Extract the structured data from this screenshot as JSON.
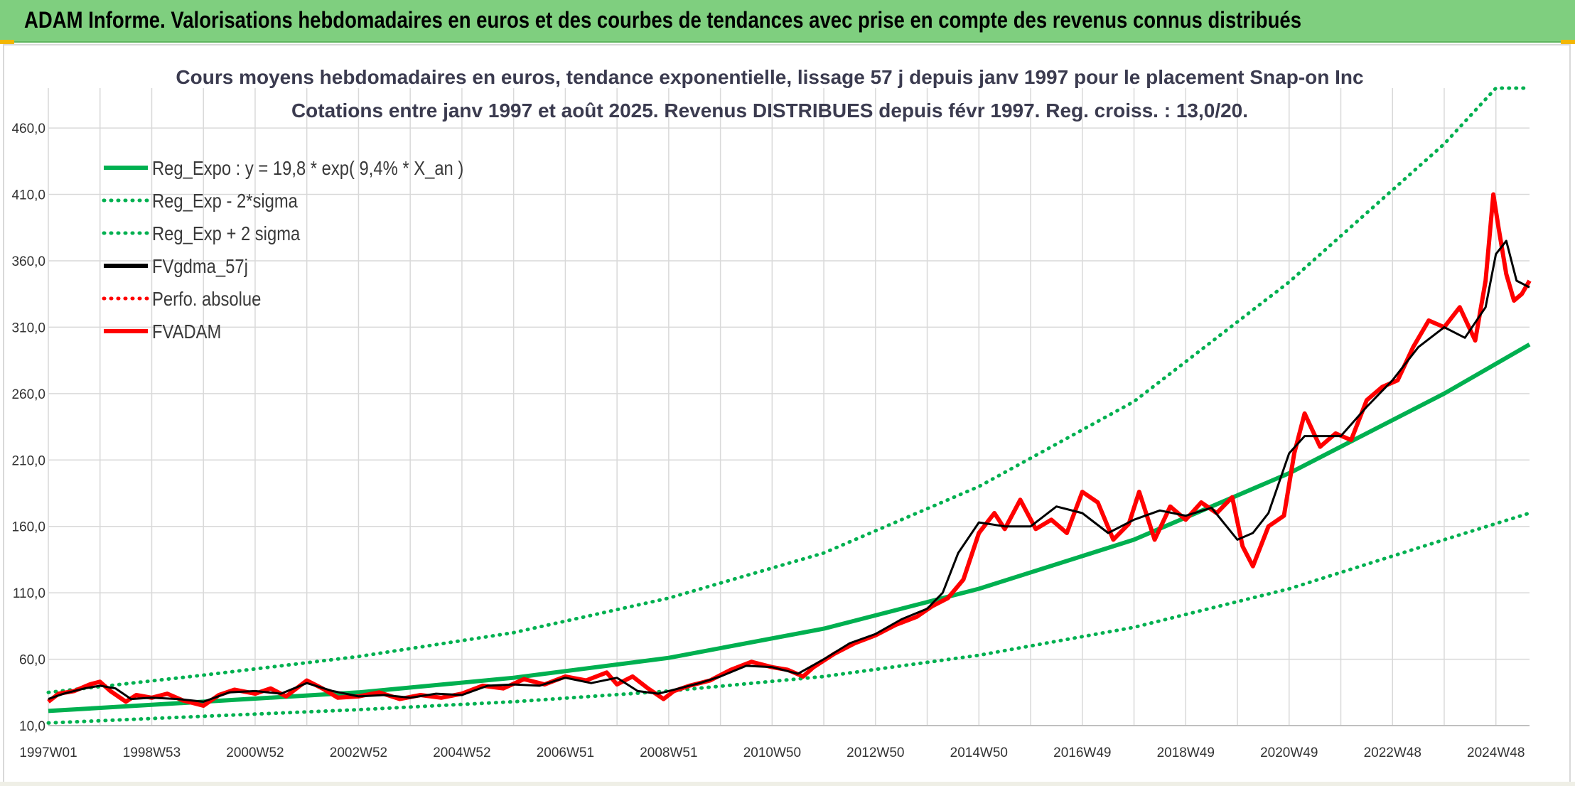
{
  "header": {
    "title": "ADAM Informe. Valorisations hebdomadaires en euros et des courbes de tendances avec prise en compte des revenus connus distribués",
    "background_color": "#7fcf7f",
    "accent_color": "#f2b705"
  },
  "chart_data": {
    "type": "line",
    "title": "Cours moyens hebdomadaires en euros, tendance exponentielle, lissage 57 j depuis janv 1997 pour le placement Snap-on Inc",
    "subtitle": "Cotations entre janv 1997 et août 2025. Revenus DISTRIBUES depuis févr 1997. Reg. croiss. : 13,0/20.",
    "xlabel": "",
    "ylabel": "",
    "ylim": [
      10,
      490
    ],
    "y_ticks": [
      "10,0",
      "60,0",
      "110,0",
      "160,0",
      "210,0",
      "260,0",
      "310,0",
      "360,0",
      "410,0",
      "460,0"
    ],
    "y_tick_values": [
      10,
      60,
      110,
      160,
      210,
      260,
      310,
      360,
      410,
      460
    ],
    "x_range_years": [
      1997.0,
      2025.65
    ],
    "x_ticks": [
      "1997W01",
      "1998W53",
      "2000W52",
      "2002W52",
      "2004W52",
      "2006W51",
      "2008W51",
      "2010W50",
      "2012W50",
      "2014W50",
      "2016W49",
      "2018W49",
      "2020W49",
      "2022W48",
      "2024W48"
    ],
    "x_tick_years": [
      1997.0,
      1999.0,
      2001.0,
      2003.0,
      2005.0,
      2007.0,
      2009.0,
      2011.0,
      2013.0,
      2015.0,
      2017.0,
      2019.0,
      2021.0,
      2023.0,
      2025.0
    ],
    "grid": true,
    "legend_position": "top-left",
    "series": [
      {
        "name": "Reg_Expo : y = 19,8 * exp( 9,4% *  X_an )",
        "color": "#00b050",
        "style": "solid",
        "x": [
          1997.0,
          2000.0,
          2003.0,
          2006.0,
          2009.0,
          2012.0,
          2015.0,
          2018.0,
          2021.0,
          2024.0,
          2025.65
        ],
        "y": [
          21,
          28,
          35,
          46,
          61,
          83,
          113,
          150,
          200,
          260,
          297
        ]
      },
      {
        "name": "Reg_Exp - 2*sigma",
        "color": "#00b050",
        "style": "dotted",
        "x": [
          1997.0,
          2000.0,
          2003.0,
          2006.0,
          2009.0,
          2012.0,
          2015.0,
          2018.0,
          2021.0,
          2024.0,
          2025.65
        ],
        "y": [
          12,
          17,
          22,
          28,
          36,
          47,
          63,
          84,
          113,
          150,
          170
        ]
      },
      {
        "name": "Reg_Exp + 2 sigma",
        "color": "#00b050",
        "style": "dotted",
        "x": [
          1997.0,
          2000.0,
          2003.0,
          2006.0,
          2009.0,
          2012.0,
          2015.0,
          2018.0,
          2021.0,
          2024.0,
          2025.0,
          2025.65
        ],
        "y": [
          35,
          48,
          62,
          80,
          106,
          140,
          190,
          254,
          344,
          448,
          490,
          490
        ]
      },
      {
        "name": "FVgdma_57j",
        "color": "#000000",
        "style": "solid",
        "x": [
          1997.0,
          1997.3,
          1997.7,
          1998.0,
          1998.3,
          1998.6,
          1999.0,
          1999.5,
          2000.0,
          2000.5,
          2001.0,
          2001.5,
          2002.0,
          2002.5,
          2003.0,
          2003.5,
          2004.0,
          2004.5,
          2005.0,
          2005.5,
          2006.0,
          2006.5,
          2007.0,
          2007.5,
          2008.0,
          2008.4,
          2008.8,
          2009.2,
          2009.6,
          2010.0,
          2010.5,
          2011.0,
          2011.5,
          2012.0,
          2012.5,
          2013.0,
          2013.5,
          2014.0,
          2014.3,
          2014.6,
          2015.0,
          2015.5,
          2016.0,
          2016.5,
          2017.0,
          2017.5,
          2018.0,
          2018.5,
          2019.0,
          2019.5,
          2020.0,
          2020.3,
          2020.6,
          2021.0,
          2021.3,
          2021.6,
          2022.0,
          2022.5,
          2023.0,
          2023.5,
          2024.0,
          2024.4,
          2024.8,
          2025.0,
          2025.2,
          2025.4,
          2025.65
        ],
        "y": [
          30,
          34,
          38,
          40,
          38,
          30,
          31,
          30,
          28,
          35,
          36,
          34,
          42,
          36,
          32,
          33,
          31,
          34,
          33,
          40,
          41,
          40,
          46,
          42,
          46,
          36,
          34,
          38,
          42,
          47,
          55,
          54,
          49,
          60,
          72,
          79,
          90,
          98,
          110,
          140,
          163,
          160,
          160,
          175,
          170,
          155,
          165,
          172,
          168,
          174,
          150,
          155,
          170,
          215,
          228,
          228,
          228,
          250,
          270,
          295,
          310,
          302,
          325,
          365,
          375,
          345,
          340
        ]
      },
      {
        "name": "Perfo. absolue",
        "color": "#ff0000",
        "style": "dotted",
        "x": [],
        "y": []
      },
      {
        "name": "FVADAM",
        "color": "#ff0000",
        "style": "solid",
        "x": [
          1997.0,
          1997.2,
          1997.5,
          1997.8,
          1998.0,
          1998.2,
          1998.5,
          1998.7,
          1999.0,
          1999.3,
          1999.6,
          2000.0,
          2000.3,
          2000.6,
          2001.0,
          2001.3,
          2001.6,
          2002.0,
          2002.3,
          2002.6,
          2003.0,
          2003.4,
          2003.8,
          2004.2,
          2004.6,
          2005.0,
          2005.4,
          2005.8,
          2006.2,
          2006.6,
          2007.0,
          2007.4,
          2007.8,
          2008.0,
          2008.3,
          2008.6,
          2008.9,
          2009.1,
          2009.4,
          2009.8,
          2010.2,
          2010.6,
          2011.0,
          2011.3,
          2011.6,
          2011.8,
          2012.2,
          2012.6,
          2013.0,
          2013.4,
          2013.8,
          2014.1,
          2014.4,
          2014.7,
          2015.0,
          2015.3,
          2015.5,
          2015.8,
          2016.1,
          2016.4,
          2016.7,
          2017.0,
          2017.3,
          2017.6,
          2017.9,
          2018.1,
          2018.4,
          2018.7,
          2019.0,
          2019.3,
          2019.6,
          2019.9,
          2020.1,
          2020.3,
          2020.6,
          2020.9,
          2021.1,
          2021.3,
          2021.6,
          2021.9,
          2022.2,
          2022.5,
          2022.8,
          2023.1,
          2023.4,
          2023.7,
          2024.0,
          2024.3,
          2024.6,
          2024.8,
          2024.95,
          2025.05,
          2025.2,
          2025.35,
          2025.5,
          2025.65
        ],
        "y": [
          28,
          34,
          36,
          41,
          43,
          36,
          28,
          33,
          31,
          34,
          29,
          25,
          33,
          37,
          34,
          38,
          32,
          44,
          38,
          31,
          32,
          35,
          30,
          33,
          31,
          34,
          40,
          38,
          45,
          41,
          47,
          44,
          50,
          41,
          47,
          38,
          30,
          36,
          40,
          44,
          52,
          58,
          54,
          52,
          47,
          54,
          64,
          72,
          78,
          86,
          92,
          100,
          106,
          120,
          155,
          170,
          158,
          180,
          158,
          165,
          155,
          186,
          178,
          150,
          162,
          186,
          150,
          175,
          165,
          178,
          170,
          182,
          145,
          130,
          160,
          168,
          215,
          245,
          220,
          230,
          225,
          255,
          265,
          270,
          295,
          315,
          310,
          325,
          300,
          345,
          410,
          385,
          350,
          330,
          335,
          345
        ]
      }
    ]
  }
}
